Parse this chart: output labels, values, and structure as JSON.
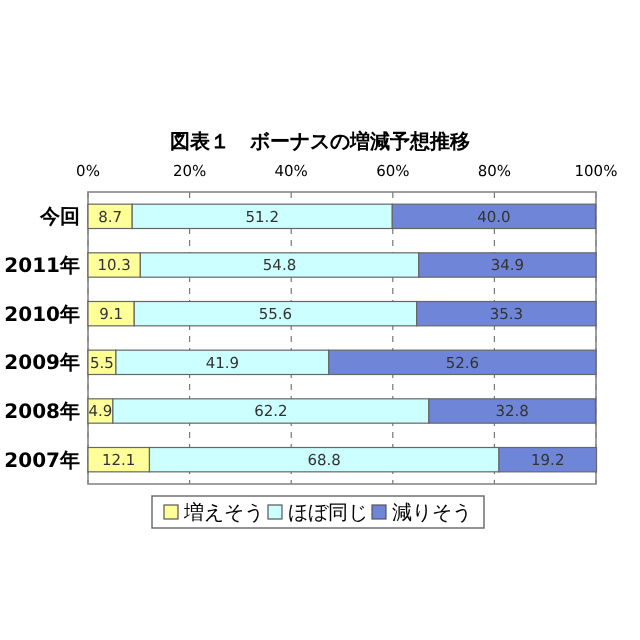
{
  "chart_data": {
    "type": "bar",
    "orientation": "horizontal",
    "stacked": true,
    "title": "図表１　ボーナスの増減予想推移",
    "categories": [
      "今回",
      "2011年",
      "2010年",
      "2009年",
      "2008年",
      "2007年"
    ],
    "series": [
      {
        "name": "増えそう",
        "color": "#ffff99",
        "values": [
          8.7,
          10.3,
          9.1,
          5.5,
          4.9,
          12.1
        ]
      },
      {
        "name": "ほぼ同じ",
        "color": "#ccffff",
        "values": [
          51.2,
          54.8,
          55.6,
          41.9,
          62.2,
          68.8
        ]
      },
      {
        "name": "減りそう",
        "color": "#6f86d8",
        "values": [
          40.0,
          34.9,
          35.3,
          52.6,
          32.8,
          19.2
        ],
        "value_labels": [
          "40.0",
          "34.9",
          "35.3",
          "52.6",
          "32.8",
          "19.2"
        ]
      }
    ],
    "xlim": [
      0,
      100
    ],
    "xticks": [
      {
        "value": 0,
        "label": "0%"
      },
      {
        "value": 20,
        "label": "20%"
      },
      {
        "value": 40,
        "label": "40%"
      },
      {
        "value": 60,
        "label": "60%"
      },
      {
        "value": 80,
        "label": "80%"
      },
      {
        "value": 100,
        "label": "100%"
      }
    ],
    "grid": "x",
    "data_labels": true,
    "legend": "bottom"
  }
}
